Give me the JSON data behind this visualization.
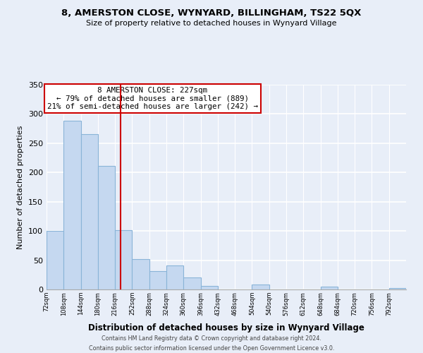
{
  "title": "8, AMERSTON CLOSE, WYNYARD, BILLINGHAM, TS22 5QX",
  "subtitle": "Size of property relative to detached houses in Wynyard Village",
  "xlabel": "Distribution of detached houses by size in Wynyard Village",
  "ylabel": "Number of detached properties",
  "bar_edges": [
    72,
    108,
    144,
    180,
    216,
    252,
    288,
    324,
    360,
    396,
    432,
    468,
    504,
    540,
    576,
    612,
    648,
    684,
    720,
    756,
    792
  ],
  "bar_heights": [
    100,
    288,
    266,
    211,
    101,
    52,
    31,
    41,
    21,
    6,
    0,
    0,
    8,
    0,
    0,
    0,
    5,
    0,
    0,
    0,
    3
  ],
  "bar_color": "#c5d8f0",
  "bar_edge_color": "#8ab4d8",
  "vline_x": 227,
  "vline_color": "#cc0000",
  "annotation_lines": [
    "8 AMERSTON CLOSE: 227sqm",
    "← 79% of detached houses are smaller (889)",
    "21% of semi-detached houses are larger (242) →"
  ],
  "annotation_box_color": "white",
  "annotation_box_edge_color": "#cc0000",
  "tick_labels": [
    "72sqm",
    "108sqm",
    "144sqm",
    "180sqm",
    "216sqm",
    "252sqm",
    "288sqm",
    "324sqm",
    "360sqm",
    "396sqm",
    "432sqm",
    "468sqm",
    "504sqm",
    "540sqm",
    "576sqm",
    "612sqm",
    "648sqm",
    "684sqm",
    "720sqm",
    "756sqm",
    "792sqm"
  ],
  "ylim": [
    0,
    350
  ],
  "yticks": [
    0,
    50,
    100,
    150,
    200,
    250,
    300,
    350
  ],
  "footer_lines": [
    "Contains HM Land Registry data © Crown copyright and database right 2024.",
    "Contains public sector information licensed under the Open Government Licence v3.0."
  ],
  "bg_color": "#e8eef8",
  "grid_color": "white"
}
